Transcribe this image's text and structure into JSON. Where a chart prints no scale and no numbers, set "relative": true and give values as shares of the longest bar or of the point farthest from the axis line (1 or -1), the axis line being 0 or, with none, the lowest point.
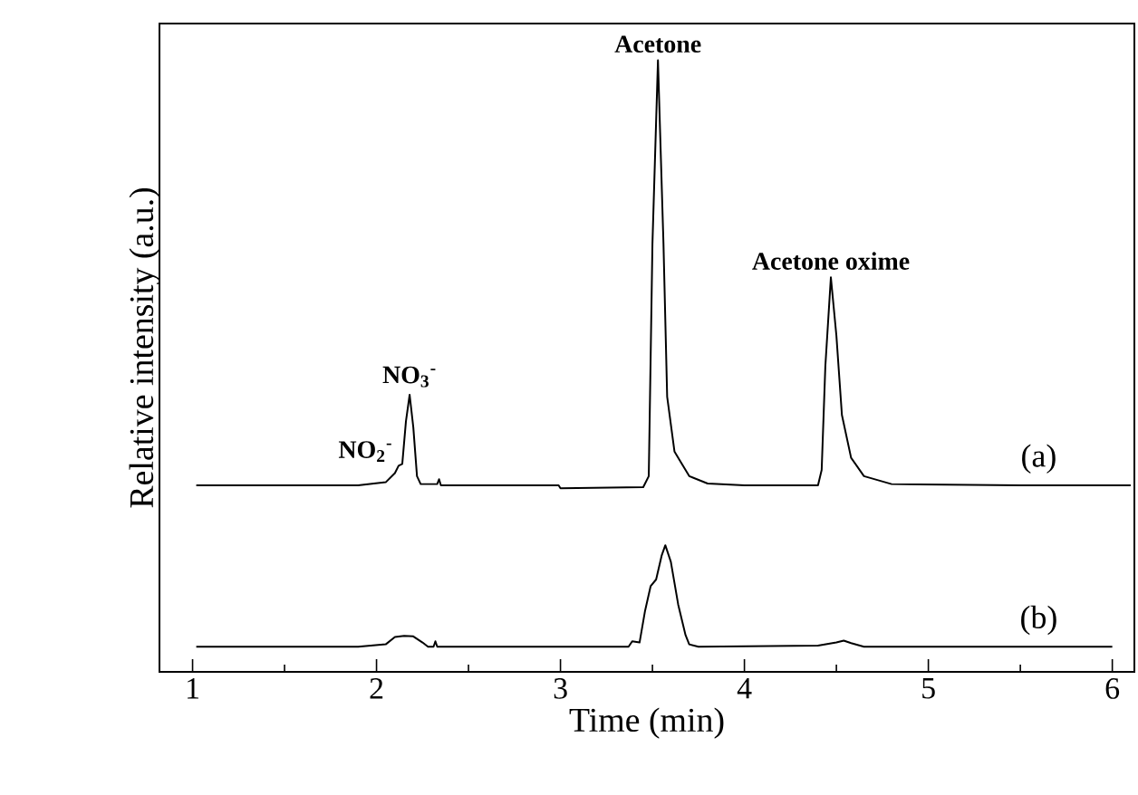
{
  "chart_data": {
    "type": "line",
    "relative": true,
    "xlabel": "Time (min)",
    "ylabel": "Relative intensity (a.u.)",
    "xlim": [
      0.82,
      6.12
    ],
    "xticks": [
      1,
      2,
      3,
      4,
      5,
      6
    ],
    "line_style": "solid",
    "series": [
      {
        "name": "(a)",
        "color": "#000000",
        "x": [
          1.02,
          1.9,
          2.05,
          2.1,
          2.12,
          2.14,
          2.16,
          2.18,
          2.2,
          2.22,
          2.24,
          2.33,
          2.34,
          2.35,
          2.99,
          3.0,
          3.45,
          3.48,
          3.5,
          3.53,
          3.56,
          3.58,
          3.62,
          3.7,
          3.8,
          4.0,
          4.4,
          4.42,
          4.44,
          4.47,
          4.5,
          4.53,
          4.58,
          4.65,
          4.8,
          5.5,
          6.1
        ],
        "values": [
          0.305,
          0.305,
          0.31,
          0.325,
          0.337,
          0.34,
          0.41,
          0.453,
          0.4,
          0.32,
          0.307,
          0.307,
          0.315,
          0.305,
          0.305,
          0.3,
          0.302,
          0.32,
          0.7,
          1.0,
          0.7,
          0.45,
          0.36,
          0.32,
          0.308,
          0.305,
          0.305,
          0.33,
          0.5,
          0.645,
          0.55,
          0.42,
          0.35,
          0.32,
          0.307,
          0.305,
          0.305
        ]
      },
      {
        "name": "(b)",
        "color": "#000000",
        "x": [
          1.02,
          1.9,
          2.05,
          2.1,
          2.15,
          2.2,
          2.25,
          2.28,
          2.31,
          2.32,
          2.33,
          3.37,
          3.39,
          3.43,
          3.46,
          3.49,
          3.52,
          3.55,
          3.57,
          3.6,
          3.64,
          3.68,
          3.7,
          3.75,
          4.4,
          4.5,
          4.54,
          4.58,
          4.65,
          6.0
        ],
        "values": [
          0.041,
          0.041,
          0.045,
          0.057,
          0.059,
          0.058,
          0.048,
          0.041,
          0.041,
          0.05,
          0.041,
          0.041,
          0.05,
          0.048,
          0.1,
          0.14,
          0.151,
          0.19,
          0.207,
          0.18,
          0.11,
          0.06,
          0.045,
          0.041,
          0.043,
          0.048,
          0.051,
          0.047,
          0.041,
          0.041
        ]
      }
    ],
    "annotations": [
      {
        "text": "NO$_{2}$$^{-}$",
        "x": 2.12,
        "y": 0.337
      },
      {
        "text": "NO$_{3}$$^{-}$",
        "x": 2.18,
        "y": 0.453
      },
      {
        "text": "Acetone",
        "x": 3.53,
        "y": 1.0
      },
      {
        "text": "Acetone oxime",
        "x": 4.47,
        "y": 0.645
      }
    ]
  }
}
